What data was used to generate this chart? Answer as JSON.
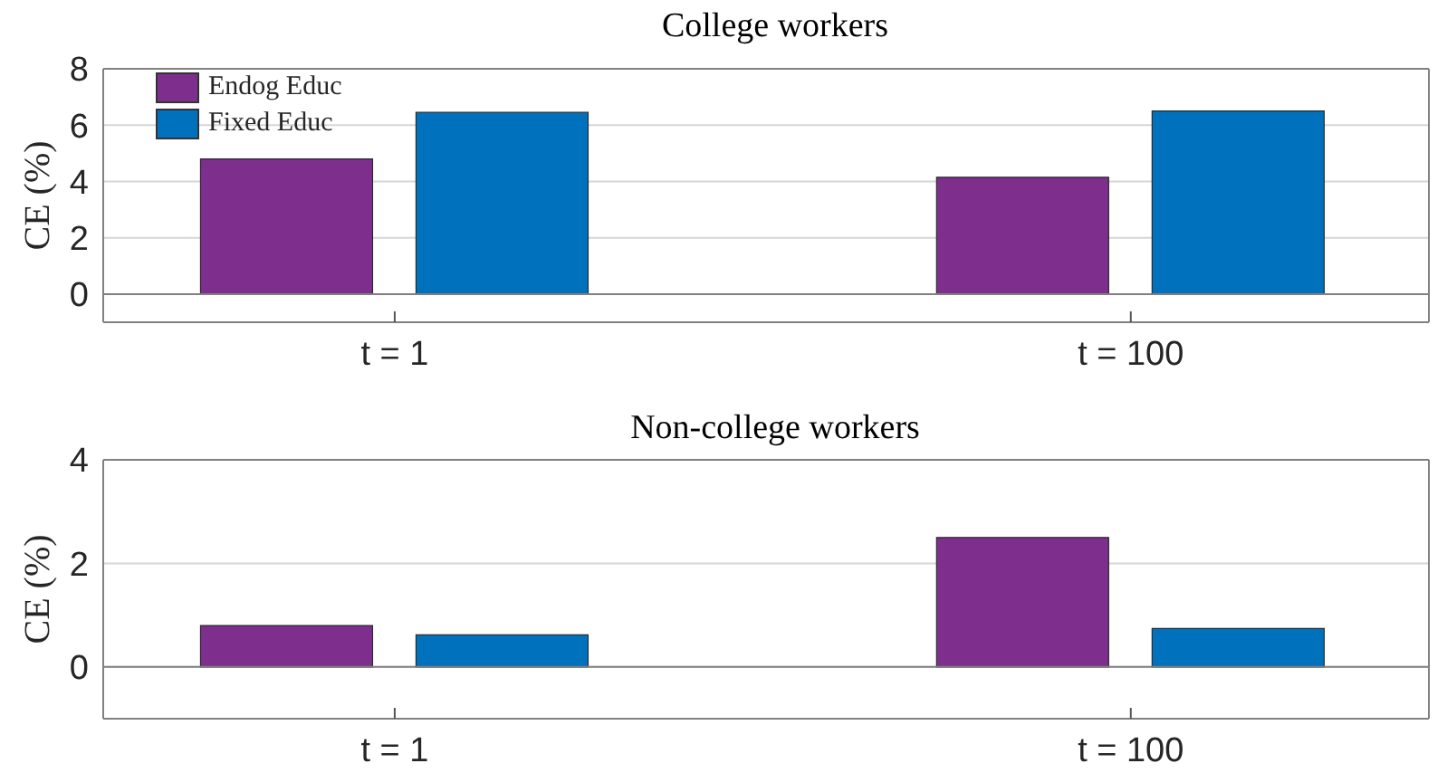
{
  "chart_data": [
    {
      "type": "bar",
      "title": "College workers",
      "ylabel": "CE (%)",
      "categories": [
        "t = 1",
        "t = 100"
      ],
      "series": [
        {
          "name": "Endog Educ",
          "color": "#7e2f8e",
          "values": [
            4.8,
            4.15
          ]
        },
        {
          "name": "Fixed Educ",
          "color": "#0072bd",
          "values": [
            6.45,
            6.5
          ]
        }
      ],
      "ylim": [
        -1,
        8
      ],
      "yticks": [
        0,
        2,
        4,
        6,
        8
      ],
      "grid": "y",
      "legend": "top left",
      "ref_lines": [
        {
          "axis": "y",
          "value": 0,
          "color": "#808080"
        }
      ]
    },
    {
      "type": "bar",
      "title": "Non-college workers",
      "ylabel": "CE (%)",
      "categories": [
        "t = 1",
        "t = 100"
      ],
      "series": [
        {
          "color": "#7e2f8e",
          "values": [
            0.8,
            2.5
          ]
        },
        {
          "color": "#0072bd",
          "values": [
            0.62,
            0.74
          ]
        }
      ],
      "ylim": [
        -1,
        4
      ],
      "yticks": [
        0,
        2,
        4
      ],
      "grid": "y",
      "legend": false,
      "ref_lines": [
        {
          "axis": "y",
          "value": 0,
          "color": "#808080"
        }
      ]
    }
  ]
}
